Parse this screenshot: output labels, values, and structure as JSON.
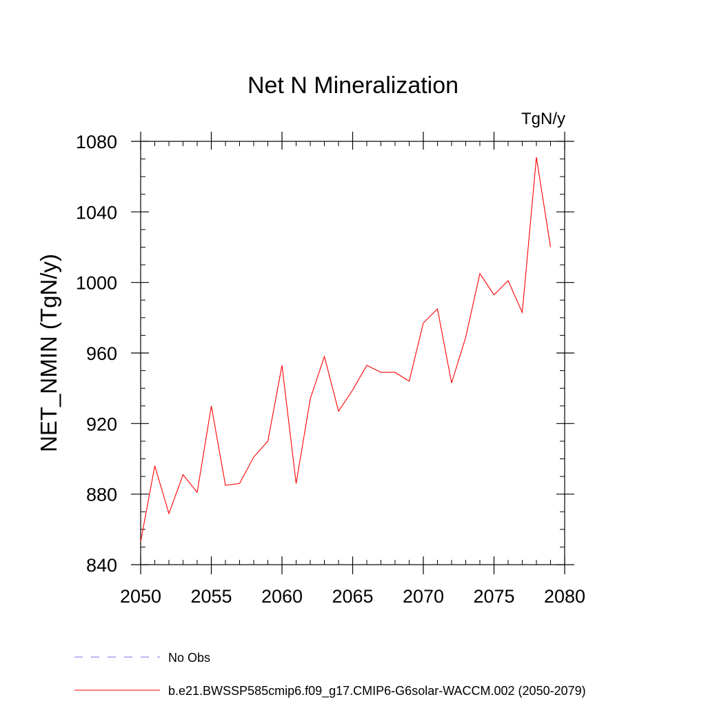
{
  "chart_data": {
    "type": "line",
    "title": "Net N Mineralization",
    "units_label": "TgN/y",
    "ylabel": "NET_NMIN  (TgN/y)",
    "xlabel": "",
    "xlim": [
      2050,
      2080
    ],
    "ylim": [
      840,
      1080
    ],
    "x_ticks": [
      2050,
      2055,
      2060,
      2065,
      2070,
      2075,
      2080
    ],
    "y_ticks": [
      840,
      880,
      920,
      960,
      1000,
      1040,
      1080
    ],
    "x_tick_labels": [
      "2050",
      "2055",
      "2060",
      "2065",
      "2070",
      "2075",
      "2080"
    ],
    "y_tick_labels": [
      "840",
      "880",
      "920",
      "960",
      "1000",
      "1040",
      "1080"
    ],
    "grid": false,
    "legend_position": "bottom-left",
    "series": [
      {
        "name": "b.e21.BWSSP585cmip6.f09_g17.CMIP6-G6solar-WACCM.002 (2050-2079)",
        "color": "#ff0000",
        "style": "solid",
        "x": [
          2050,
          2051,
          2052,
          2053,
          2054,
          2055,
          2056,
          2057,
          2058,
          2059,
          2060,
          2061,
          2062,
          2063,
          2064,
          2065,
          2066,
          2067,
          2068,
          2069,
          2070,
          2071,
          2072,
          2073,
          2074,
          2075,
          2076,
          2077,
          2078,
          2079
        ],
        "values": [
          853,
          896,
          869,
          891,
          881,
          930,
          885,
          886,
          901,
          910,
          953,
          886,
          934,
          958,
          927,
          939,
          953,
          949,
          949,
          944,
          977,
          985,
          943,
          969,
          1005,
          993,
          1001,
          983,
          1071,
          1020
        ]
      }
    ],
    "legend": [
      {
        "label": "No Obs",
        "color": "#7b68ee",
        "style": "dashed"
      },
      {
        "label": "b.e21.BWSSP585cmip6.f09_g17.CMIP6-G6solar-WACCM.002 (2050-2079)",
        "color": "#ff0000",
        "style": "solid"
      }
    ]
  }
}
